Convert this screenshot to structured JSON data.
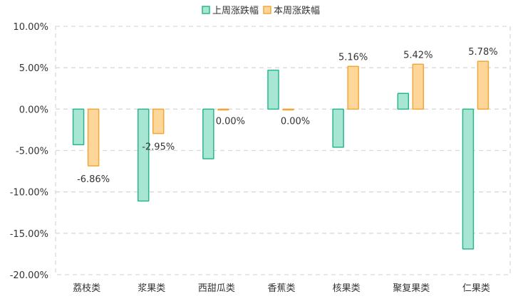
{
  "chart_data": {
    "type": "bar",
    "title": "",
    "xlabel": "",
    "ylabel": "",
    "categories": [
      "荔枝类",
      "浆果类",
      "西甜瓜类",
      "香蕉类",
      "核果类",
      "聚复果类",
      "仁果类"
    ],
    "series": [
      {
        "name": "上周涨跌幅",
        "values": [
          -4.3,
          -11.1,
          -6.0,
          4.7,
          -4.6,
          1.9,
          -16.9
        ],
        "fill": "#a8e6d4",
        "stroke": "#2bb58f",
        "show_labels": false
      },
      {
        "name": "本周涨跌幅",
        "values": [
          -6.86,
          -2.95,
          0.0,
          0.0,
          5.16,
          5.42,
          5.78
        ],
        "fill": "#ffd69a",
        "stroke": "#f0a73a",
        "show_labels": true,
        "labels": [
          "-6.86%",
          "-2.95%",
          "0.00%",
          "0.00%",
          "5.16%",
          "5.42%",
          "5.78%"
        ]
      }
    ],
    "ylim": [
      -20,
      10
    ],
    "ytick_values": [
      10,
      5,
      0,
      -5,
      -10,
      -15,
      -20
    ],
    "ytick_labels": [
      "10.00%",
      "5.00%",
      "0.00%",
      "-5.00%",
      "-10.00%",
      "-15.00%",
      "-20.00%"
    ],
    "grid": true,
    "legend_position": "top-center",
    "colors": {
      "grid": "#d9d9d9",
      "axis": "#d9d9d9",
      "text": "#333333"
    }
  }
}
